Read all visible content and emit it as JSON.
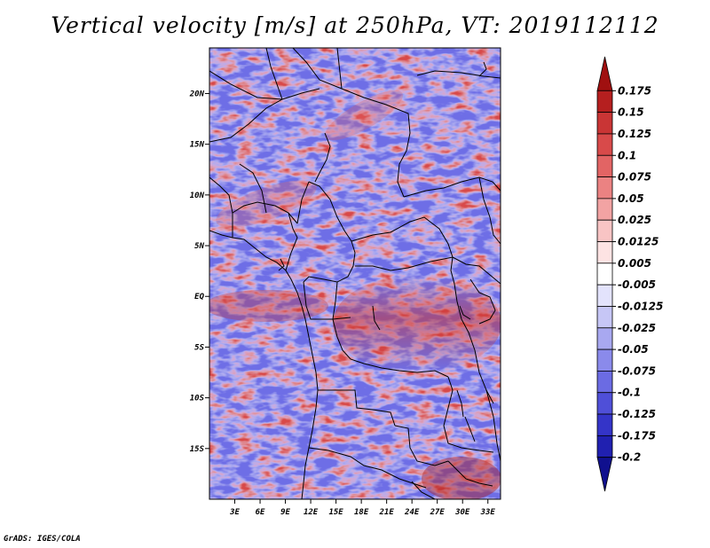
{
  "title": "Vertical velocity [m/s] at 250hPa, VT: 2019112112",
  "credit": "GrADS: IGES/COLA",
  "map": {
    "lat_labels": [
      "20N",
      "15N",
      "10N",
      "5N",
      "EQ",
      "5S",
      "10S",
      "15S"
    ],
    "lon_labels": [
      "3E",
      "6E",
      "9E",
      "12E",
      "15E",
      "18E",
      "21E",
      "24E",
      "27E",
      "30E",
      "33E"
    ],
    "lat_range": [
      -20,
      24.5
    ],
    "lon_range": [
      0,
      34.5
    ]
  },
  "colorbar": {
    "labels": [
      "0.175",
      "0.15",
      "0.125",
      "0.1",
      "0.075",
      "0.05",
      "0.025",
      "0.0125",
      "0.005",
      "-0.005",
      "-0.0125",
      "-0.025",
      "-0.05",
      "-0.075",
      "-0.1",
      "-0.125",
      "-0.175",
      "-0.2"
    ],
    "colors": [
      "#a01010",
      "#b51f1f",
      "#c93535",
      "#d84a4a",
      "#e26464",
      "#eb8282",
      "#f2a3a3",
      "#f8c4c4",
      "#fde3e3",
      "#ffffff",
      "#e3e3fc",
      "#c6c6f6",
      "#a8a8f0",
      "#8a8aeb",
      "#6b6be3",
      "#4f4fd8",
      "#3434c8",
      "#2020b0",
      "#10108e"
    ]
  }
}
